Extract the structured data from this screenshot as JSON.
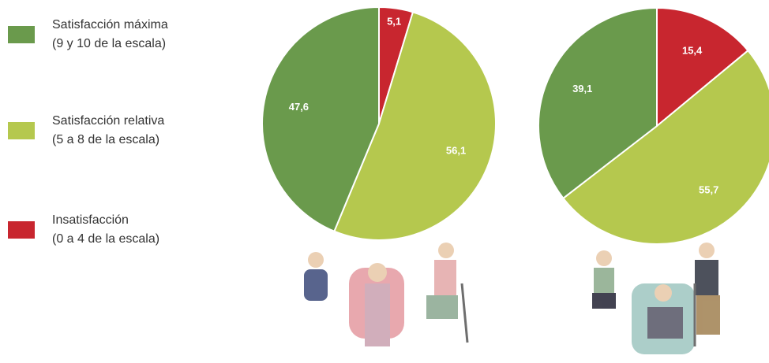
{
  "chart_data": [
    {
      "type": "pie",
      "categories": [
        "Satisfacción máxima\n(9 y 10 de la escala)",
        "Satisfacción relativa\n(5 a 8 de la escala)",
        "Insatisfacción\n(0 a 4 de la escala)"
      ],
      "colors": [
        "#6a9a4c",
        "#b5c84e",
        "#c8262f"
      ],
      "values": [
        47.6,
        56.1,
        5.1
      ],
      "value_labels": [
        "47,6",
        "56,1",
        "5,1"
      ]
    },
    {
      "type": "pie",
      "colors": [
        "#6a9a4c",
        "#b5c84e",
        "#c8262f"
      ],
      "values": [
        39.1,
        55.7,
        15.4
      ],
      "value_labels": [
        "39,1",
        "55,7",
        "15,4"
      ]
    }
  ]
}
